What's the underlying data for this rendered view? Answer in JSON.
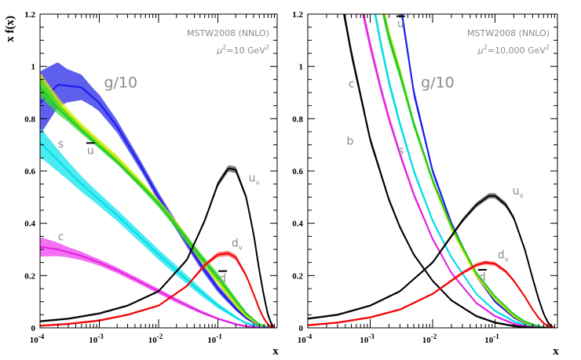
{
  "chart_data": [
    {
      "type": "line",
      "title": "",
      "annotation": "MSTW2008 (NNLO)",
      "scale_prefix": "μ",
      "scale_text": "=10 GeV",
      "xlabel": "x",
      "ylabel": "x f(x)",
      "x_scale": "log",
      "xlim": [
        0.0001,
        1
      ],
      "ylim": [
        0,
        1.2
      ],
      "x_tick_bases": [
        "10",
        "10",
        "10",
        "10"
      ],
      "x_tick_exps": [
        "-4",
        "-3",
        "-2",
        "-1"
      ],
      "y_ticks": [
        "0",
        "0.2",
        "0.4",
        "0.6",
        "0.8",
        "1",
        "1.2"
      ],
      "series": [
        {
          "name": "g/10",
          "color": "#1818f0",
          "band_color": "#2a2ae8",
          "label_x": 0.0012,
          "label_y": 0.92,
          "label_size": "big",
          "band_rel": [
            0.14,
            0.07,
            0.04,
            0.03,
            0.03,
            0.04,
            0.06,
            0.1,
            0.15,
            0.2
          ],
          "x": [
            0.0001,
            0.0002,
            0.0005,
            0.001,
            0.002,
            0.005,
            0.01,
            0.02,
            0.05,
            0.1,
            0.2,
            0.3,
            0.5,
            0.7,
            0.9
          ],
          "y": [
            0.86,
            0.93,
            0.92,
            0.86,
            0.77,
            0.62,
            0.5,
            0.39,
            0.245,
            0.15,
            0.075,
            0.038,
            0.008,
            0.0012,
            0.0
          ]
        },
        {
          "name": "u",
          "bar": true,
          "color": "#c8e600",
          "band_color": "#d8f000",
          "label_x": 0.00062,
          "label_y": 0.665,
          "label_size": "small",
          "band_rel": [
            0.04,
            0.02,
            0.015,
            0.015,
            0.02,
            0.03,
            0.05,
            0.08,
            0.12,
            0.2
          ],
          "x": [
            0.0001,
            0.0002,
            0.0005,
            0.001,
            0.002,
            0.005,
            0.01,
            0.02,
            0.05,
            0.1,
            0.2,
            0.3,
            0.5,
            0.7,
            0.9
          ],
          "y": [
            0.94,
            0.86,
            0.77,
            0.71,
            0.65,
            0.555,
            0.48,
            0.395,
            0.27,
            0.18,
            0.09,
            0.045,
            0.01,
            0.002,
            0.0
          ]
        },
        {
          "name": "",
          "color": "#20c820",
          "band_color": "#30d830",
          "label_x": null,
          "label_y": null,
          "label_size": "small",
          "band_rel": [
            0.04,
            0.02,
            0.015,
            0.015,
            0.02,
            0.03,
            0.05,
            0.08,
            0.12,
            0.2
          ],
          "x": [
            0.0001,
            0.0002,
            0.0005,
            0.001,
            0.002,
            0.005,
            0.01,
            0.02,
            0.05,
            0.1,
            0.2,
            0.3,
            0.5,
            0.7,
            0.9
          ],
          "y": [
            0.92,
            0.84,
            0.755,
            0.695,
            0.635,
            0.545,
            0.473,
            0.39,
            0.275,
            0.195,
            0.105,
            0.055,
            0.013,
            0.0025,
            0.0
          ]
        },
        {
          "name": "s",
          "color": "#00dce6",
          "band_color": "#10e4ee",
          "label_x": 0.0002,
          "label_y": 0.69,
          "label_size": "small",
          "band_rel": [
            0.08,
            0.06,
            0.05,
            0.05,
            0.06,
            0.08,
            0.1,
            0.12,
            0.15,
            0.2
          ],
          "x": [
            0.0001,
            0.0002,
            0.0005,
            0.001,
            0.002,
            0.005,
            0.01,
            0.02,
            0.05,
            0.1,
            0.2,
            0.3,
            0.5,
            0.7,
            0.9
          ],
          "y": [
            0.71,
            0.64,
            0.55,
            0.49,
            0.43,
            0.345,
            0.28,
            0.22,
            0.14,
            0.085,
            0.04,
            0.018,
            0.003,
            0.0004,
            0.0
          ]
        },
        {
          "name": "c",
          "color": "#e020e0",
          "band_color": "#f040f0",
          "label_x": 0.0002,
          "label_y": 0.335,
          "label_size": "small",
          "band_rel": [
            0.12,
            0.07,
            0.05,
            0.05,
            0.06,
            0.08,
            0.1,
            0.12,
            0.15,
            0.2
          ],
          "x": [
            0.0001,
            0.0002,
            0.0005,
            0.001,
            0.002,
            0.005,
            0.01,
            0.02,
            0.05,
            0.1,
            0.2,
            0.3,
            0.5,
            0.7,
            0.9
          ],
          "y": [
            0.31,
            0.3,
            0.275,
            0.25,
            0.22,
            0.175,
            0.14,
            0.105,
            0.062,
            0.035,
            0.014,
            0.006,
            0.001,
            0.0,
            0.0
          ]
        },
        {
          "name": "u",
          "sub": "v",
          "color": "#000000",
          "band_color": "#505050",
          "label_x": 0.33,
          "label_y": 0.56,
          "label_size": "small",
          "band_rel": [
            0.06,
            0.04,
            0.03,
            0.025,
            0.02,
            0.02,
            0.02,
            0.02,
            0.02,
            0.03
          ],
          "x": [
            0.0001,
            0.0003,
            0.001,
            0.003,
            0.01,
            0.03,
            0.06,
            0.1,
            0.15,
            0.2,
            0.3,
            0.4,
            0.5,
            0.6,
            0.7,
            0.8,
            0.9
          ],
          "y": [
            0.025,
            0.035,
            0.055,
            0.085,
            0.14,
            0.26,
            0.41,
            0.55,
            0.61,
            0.605,
            0.5,
            0.36,
            0.22,
            0.12,
            0.05,
            0.015,
            0.0
          ]
        },
        {
          "name": "d",
          "sub": "v",
          "color": "#f00000",
          "band_color": "#ff5050",
          "label_x": 0.17,
          "label_y": 0.31,
          "label_size": "small",
          "band_rel": [
            0.06,
            0.05,
            0.04,
            0.035,
            0.03,
            0.03,
            0.03,
            0.035,
            0.04,
            0.05
          ],
          "x": [
            0.0001,
            0.0003,
            0.001,
            0.003,
            0.01,
            0.03,
            0.06,
            0.1,
            0.15,
            0.2,
            0.3,
            0.4,
            0.5,
            0.6,
            0.7,
            0.8,
            0.9
          ],
          "y": [
            0.008,
            0.015,
            0.028,
            0.05,
            0.085,
            0.16,
            0.24,
            0.28,
            0.285,
            0.27,
            0.2,
            0.13,
            0.072,
            0.035,
            0.013,
            0.003,
            0.0
          ]
        }
      ],
      "extra_labels": [
        {
          "name": "d",
          "bar": true,
          "label_x": 0.105,
          "label_y": 0.175
        }
      ]
    },
    {
      "type": "line",
      "title": "",
      "annotation": "MSTW2008 (NNLO)",
      "scale_prefix": "μ",
      "scale_text": "=10,000 GeV",
      "xlabel": "x",
      "ylabel": "",
      "x_scale": "log",
      "xlim": [
        0.0001,
        1
      ],
      "ylim": [
        0,
        1.2
      ],
      "x_tick_bases": [
        "10",
        "10",
        "10",
        "10"
      ],
      "x_tick_exps": [
        "-4",
        "-3",
        "-2",
        "-1"
      ],
      "y_ticks": [
        "0",
        "0.2",
        "0.4",
        "0.6",
        "0.8",
        "1",
        "1.2"
      ],
      "series": [
        {
          "name": "g/10",
          "color": "#1818f0",
          "band_color": "#2a2ae8",
          "label_x": 0.0065,
          "label_y": 0.92,
          "label_size": "big",
          "band_rel": [
            0.02,
            0.02,
            0.02,
            0.02,
            0.02,
            0.02,
            0.03,
            0.04,
            0.05,
            0.06
          ],
          "x": [
            0.003,
            0.005,
            0.01,
            0.02,
            0.05,
            0.1,
            0.2,
            0.3,
            0.5,
            0.7,
            0.9
          ],
          "y": [
            1.25,
            0.9,
            0.6,
            0.4,
            0.2,
            0.1,
            0.04,
            0.018,
            0.004,
            0.0005,
            0.0
          ]
        },
        {
          "name": "u",
          "bar": true,
          "color": "#c8e600",
          "band_color": "#d8f000",
          "label_x": 0.0027,
          "label_y": 1.15,
          "label_size": "small",
          "band_rel": [
            0.02,
            0.02,
            0.02,
            0.02,
            0.02,
            0.02,
            0.03,
            0.04,
            0.05,
            0.06
          ],
          "x": [
            0.0015,
            0.002,
            0.003,
            0.005,
            0.01,
            0.02,
            0.05,
            0.1,
            0.2,
            0.3,
            0.5,
            0.7,
            0.9
          ],
          "y": [
            1.25,
            1.12,
            0.98,
            0.78,
            0.56,
            0.38,
            0.2,
            0.11,
            0.045,
            0.02,
            0.004,
            0.0005,
            0.0
          ]
        },
        {
          "name": "",
          "color": "#20c820",
          "band_color": "#30d830",
          "label_x": null,
          "label_y": null,
          "label_size": "small",
          "band_rel": [
            0.02,
            0.02,
            0.02,
            0.02,
            0.02,
            0.02,
            0.03,
            0.04,
            0.05,
            0.06
          ],
          "x": [
            0.0015,
            0.002,
            0.003,
            0.005,
            0.01,
            0.02,
            0.05,
            0.1,
            0.2,
            0.3,
            0.5,
            0.7,
            0.9
          ],
          "y": [
            1.24,
            1.11,
            0.97,
            0.78,
            0.565,
            0.39,
            0.21,
            0.12,
            0.052,
            0.024,
            0.005,
            0.0006,
            0.0
          ]
        },
        {
          "name": "s",
          "color": "#00dce6",
          "band_color": "#10e4ee",
          "label_x": 0.0028,
          "label_y": 0.665,
          "label_size": "small",
          "band_rel": [
            0.02,
            0.02,
            0.02,
            0.02,
            0.02,
            0.02,
            0.03,
            0.04,
            0.05,
            0.06
          ],
          "x": [
            0.0011,
            0.0015,
            0.002,
            0.003,
            0.005,
            0.01,
            0.02,
            0.05,
            0.1,
            0.2,
            0.3,
            0.5,
            0.7,
            0.9
          ],
          "y": [
            1.25,
            1.08,
            0.94,
            0.78,
            0.6,
            0.41,
            0.27,
            0.13,
            0.065,
            0.025,
            0.01,
            0.0015,
            0.0,
            0.0
          ]
        },
        {
          "name": "c",
          "color": "#e020e0",
          "band_color": "#f040f0",
          "label_x": 0.00045,
          "label_y": 0.92,
          "label_size": "small",
          "band_rel": [
            0.02,
            0.02,
            0.02,
            0.02,
            0.02,
            0.02,
            0.03,
            0.04,
            0.05,
            0.06
          ],
          "x": [
            0.0007,
            0.001,
            0.0015,
            0.002,
            0.003,
            0.005,
            0.01,
            0.02,
            0.05,
            0.1,
            0.2,
            0.3,
            0.5,
            0.7,
            0.9
          ],
          "y": [
            1.25,
            1.08,
            0.91,
            0.8,
            0.665,
            0.51,
            0.34,
            0.21,
            0.095,
            0.045,
            0.015,
            0.006,
            0.0008,
            0.0,
            0.0
          ]
        },
        {
          "name": "b",
          "color": "#000000",
          "band_color": "#303030",
          "label_x": 0.00042,
          "label_y": 0.7,
          "label_size": "small",
          "band_rel": [
            0.02,
            0.02,
            0.02,
            0.02,
            0.02,
            0.02,
            0.03,
            0.04,
            0.05,
            0.06
          ],
          "x": [
            0.00035,
            0.0005,
            0.001,
            0.002,
            0.003,
            0.005,
            0.01,
            0.02,
            0.05,
            0.1,
            0.2,
            0.3,
            0.5,
            0.7,
            0.9
          ],
          "y": [
            1.25,
            1.05,
            0.72,
            0.49,
            0.385,
            0.28,
            0.18,
            0.105,
            0.045,
            0.02,
            0.007,
            0.0025,
            0.0003,
            0.0,
            0.0
          ]
        },
        {
          "name": "u",
          "sub": "v",
          "color": "#000000",
          "band_color": "#505050",
          "label_x": 0.19,
          "label_y": 0.51,
          "label_size": "small",
          "band_rel": [
            0.04,
            0.03,
            0.025,
            0.02,
            0.02,
            0.02,
            0.02,
            0.02,
            0.02,
            0.03
          ],
          "x": [
            0.0001,
            0.0003,
            0.001,
            0.003,
            0.01,
            0.03,
            0.05,
            0.08,
            0.1,
            0.15,
            0.2,
            0.3,
            0.4,
            0.5,
            0.6,
            0.7,
            0.8,
            0.9
          ],
          "y": [
            0.035,
            0.05,
            0.085,
            0.14,
            0.25,
            0.41,
            0.47,
            0.505,
            0.505,
            0.47,
            0.42,
            0.3,
            0.19,
            0.11,
            0.055,
            0.022,
            0.005,
            0.0
          ]
        },
        {
          "name": "d",
          "sub": "v",
          "color": "#f00000",
          "band_color": "#ff5050",
          "label_x": 0.11,
          "label_y": 0.265,
          "label_size": "small",
          "band_rel": [
            0.05,
            0.04,
            0.035,
            0.03,
            0.03,
            0.03,
            0.03,
            0.03,
            0.035,
            0.04
          ],
          "x": [
            0.0001,
            0.0003,
            0.001,
            0.003,
            0.01,
            0.03,
            0.05,
            0.07,
            0.1,
            0.15,
            0.2,
            0.3,
            0.4,
            0.5,
            0.6,
            0.7,
            0.8,
            0.9
          ],
          "y": [
            0.01,
            0.02,
            0.04,
            0.07,
            0.13,
            0.21,
            0.24,
            0.25,
            0.245,
            0.215,
            0.18,
            0.12,
            0.07,
            0.038,
            0.018,
            0.007,
            0.0015,
            0.0
          ]
        }
      ],
      "extra_labels": [
        {
          "name": "d",
          "bar": true,
          "label_x": 0.055,
          "label_y": 0.18
        }
      ]
    }
  ]
}
